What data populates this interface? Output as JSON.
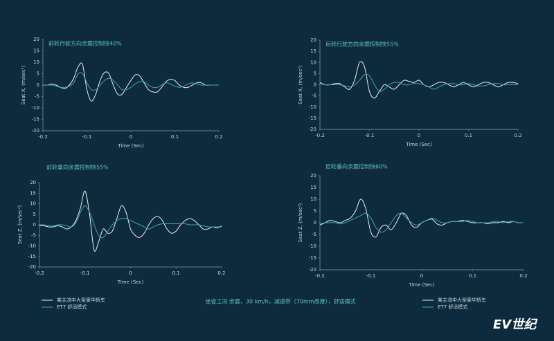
{
  "chart_data": [
    {
      "type": "line",
      "title": "前轮行驶方向余震控制快40%",
      "xlabel": "Time (Sec)",
      "ylabel": "Seat X, (m/sec²)",
      "xlim": [
        -0.2,
        0.2
      ],
      "ylim": [
        -20,
        20
      ],
      "xticks": [
        -0.2,
        -0.1,
        0,
        0.1,
        0.2
      ],
      "yticks": [
        -20,
        -15,
        -10,
        -5,
        0,
        5,
        10,
        15,
        20
      ],
      "x": [
        -0.2,
        -0.19,
        -0.18,
        -0.17,
        -0.16,
        -0.15,
        -0.14,
        -0.13,
        -0.12,
        -0.11,
        -0.1,
        -0.09,
        -0.08,
        -0.07,
        -0.06,
        -0.05,
        -0.04,
        -0.03,
        -0.02,
        -0.01,
        0,
        0.01,
        0.02,
        0.03,
        0.04,
        0.05,
        0.06,
        0.07,
        0.08,
        0.09,
        0.1,
        0.11,
        0.12,
        0.13,
        0.14,
        0.15,
        0.16,
        0.17,
        0.18,
        0.19,
        0.2
      ],
      "series": [
        {
          "name": "某主流中大型豪华轿车",
          "color": "#e8eef0",
          "values": [
            0,
            0,
            0.5,
            0,
            -1,
            -1.5,
            0,
            3,
            8,
            9,
            -2,
            -7,
            -4,
            2,
            5.5,
            5,
            0,
            -4,
            -4,
            -1,
            2,
            4.5,
            4,
            1,
            -2,
            -3,
            -3,
            -1,
            1.5,
            2.5,
            2,
            0,
            -1,
            -1,
            0,
            1,
            1,
            0,
            0,
            0,
            0
          ]
        },
        {
          "name": "ET7 舒适模式",
          "color": "#3fa7a8",
          "values": [
            0,
            0,
            0,
            -0.5,
            -1,
            -1,
            -0.5,
            1,
            5,
            5,
            1,
            -2,
            -2,
            0,
            2,
            3,
            2,
            0,
            -2,
            -2,
            -1,
            0.5,
            1.5,
            1.5,
            0,
            -1,
            -1,
            0,
            1,
            0.5,
            -0.5,
            -1,
            -0.5,
            0.5,
            1,
            0.5,
            0,
            0,
            0,
            0,
            0
          ]
        }
      ]
    },
    {
      "type": "line",
      "title": "后轮行驶方向余震控制快55%",
      "xlabel": "Time (Sec)",
      "ylabel": "Seat X, (m/sec²)",
      "xlim": [
        -0.2,
        0.2
      ],
      "ylim": [
        -20,
        20
      ],
      "xticks": [
        -0.2,
        -0.1,
        0,
        0.1,
        0.2
      ],
      "yticks": [
        -20,
        -15,
        -10,
        -5,
        0,
        5,
        10,
        15,
        20
      ],
      "x": [
        -0.2,
        -0.19,
        -0.18,
        -0.17,
        -0.16,
        -0.15,
        -0.14,
        -0.13,
        -0.12,
        -0.11,
        -0.1,
        -0.09,
        -0.08,
        -0.07,
        -0.06,
        -0.05,
        -0.04,
        -0.03,
        -0.02,
        -0.01,
        0,
        0.01,
        0.02,
        0.03,
        0.04,
        0.05,
        0.06,
        0.07,
        0.08,
        0.09,
        0.1,
        0.11,
        0.12,
        0.13,
        0.14,
        0.15,
        0.16,
        0.17,
        0.18,
        0.19,
        0.2
      ],
      "series": [
        {
          "name": "某主流中大型豪华轿车",
          "color": "#e8eef0",
          "values": [
            1,
            0,
            0,
            0.5,
            0.5,
            -1,
            -2,
            2,
            10,
            8,
            -3,
            -6,
            -3,
            0,
            -1,
            -2,
            0,
            2,
            1.5,
            1,
            2,
            0,
            -1,
            0,
            1,
            1,
            0,
            -1,
            0,
            1,
            0,
            -1,
            0,
            1,
            1,
            0,
            -1,
            0,
            1,
            1,
            0.5
          ]
        },
        {
          "name": "ET7 舒适模式",
          "color": "#3fa7a8",
          "values": [
            0.5,
            0,
            0,
            0,
            0,
            -0.5,
            -1,
            0,
            2,
            4.5,
            4,
            0,
            -3,
            -2,
            0,
            1,
            1,
            0,
            0,
            0.5,
            0.5,
            0,
            -1,
            -2,
            -1,
            0,
            0.5,
            0.5,
            0,
            0,
            0.5,
            0,
            -0.5,
            -0.5,
            0,
            0.5,
            0.5,
            0,
            0,
            0,
            0
          ]
        }
      ]
    },
    {
      "type": "line",
      "title": "前轮垂向余震控制快55%",
      "xlabel": "Time (Sec)",
      "ylabel": "Seat Z, (m/sec²)",
      "xlim": [
        -0.2,
        0.2
      ],
      "ylim": [
        -20,
        20
      ],
      "xticks": [
        -0.2,
        -0.1,
        0,
        0.1,
        0.2
      ],
      "yticks": [
        -20,
        -15,
        -10,
        -5,
        0,
        5,
        10,
        15,
        20
      ],
      "x": [
        -0.2,
        -0.19,
        -0.18,
        -0.17,
        -0.16,
        -0.15,
        -0.14,
        -0.13,
        -0.12,
        -0.11,
        -0.1,
        -0.09,
        -0.08,
        -0.07,
        -0.06,
        -0.05,
        -0.04,
        -0.03,
        -0.02,
        -0.01,
        0,
        0.01,
        0.02,
        0.03,
        0.04,
        0.05,
        0.06,
        0.07,
        0.08,
        0.09,
        0.1,
        0.11,
        0.12,
        0.13,
        0.14,
        0.15,
        0.16,
        0.17,
        0.18,
        0.19,
        0.2
      ],
      "series": [
        {
          "name": "某主流中大型豪华轿车",
          "color": "#e8eef0",
          "values": [
            -0.5,
            -0.5,
            -1,
            -1,
            -0.5,
            -1,
            -2,
            -1,
            2,
            8,
            16,
            5,
            -12,
            -8,
            -2,
            -4,
            -3,
            3,
            9,
            6,
            -2,
            -5,
            -6,
            -4,
            0,
            3,
            4,
            2,
            -2,
            -4,
            -3,
            0,
            2,
            3,
            2,
            0,
            -2,
            -2,
            -1,
            -1.5,
            -0.5
          ]
        },
        {
          "name": "ET7 舒适模式",
          "color": "#3fa7a8",
          "values": [
            0,
            0,
            -0.5,
            -0.5,
            0,
            0,
            -0.5,
            -1,
            1,
            6,
            9,
            6,
            0,
            -5,
            -6,
            -3,
            0,
            2,
            3,
            3,
            2,
            1,
            0,
            -1,
            -2,
            -1,
            0,
            0.5,
            0.5,
            0.5,
            0.5,
            0.5,
            0.5,
            0,
            0,
            0,
            -0.5,
            -1,
            -1,
            -1,
            -1
          ]
        }
      ]
    },
    {
      "type": "line",
      "title": "后轮垂向余震控制快60%",
      "xlabel": "Time (Sec)",
      "ylabel": "Seat Z, (m/sec²)",
      "xlim": [
        -0.2,
        0.2
      ],
      "ylim": [
        -20,
        20
      ],
      "xticks": [
        -0.2,
        -0.1,
        0,
        0.1,
        0.2
      ],
      "yticks": [
        -20,
        -15,
        -10,
        -5,
        0,
        5,
        10,
        15,
        20
      ],
      "x": [
        -0.2,
        -0.19,
        -0.18,
        -0.17,
        -0.16,
        -0.15,
        -0.14,
        -0.13,
        -0.12,
        -0.11,
        -0.1,
        -0.09,
        -0.08,
        -0.07,
        -0.06,
        -0.05,
        -0.04,
        -0.03,
        -0.02,
        -0.01,
        0,
        0.01,
        0.02,
        0.03,
        0.04,
        0.05,
        0.06,
        0.07,
        0.08,
        0.09,
        0.1,
        0.11,
        0.12,
        0.13,
        0.14,
        0.15,
        0.16,
        0.17,
        0.18,
        0.19,
        0.2
      ],
      "series": [
        {
          "name": "某主流中大型豪华轿车",
          "color": "#e8eef0",
          "values": [
            -1,
            0,
            1,
            0.5,
            0,
            1,
            2,
            5,
            10,
            6,
            -4,
            -6,
            -2,
            -1,
            -3,
            0,
            4,
            3,
            -1,
            -2,
            0,
            1,
            1.5,
            -0.5,
            -1,
            0,
            0.5,
            0.5,
            1,
            0.5,
            0,
            0,
            0,
            -0.5,
            0,
            0,
            0.5,
            0,
            0.5,
            0,
            0
          ]
        },
        {
          "name": "ET7 舒适模式",
          "color": "#3fa7a8",
          "values": [
            -0.5,
            0,
            0,
            0,
            -0.5,
            0,
            1,
            2,
            3,
            4,
            2,
            -2,
            -4,
            -3,
            0,
            3,
            4,
            2,
            0,
            -1,
            0,
            1,
            2,
            1,
            0,
            0,
            0.5,
            0.5,
            0.5,
            1,
            0.5,
            0,
            0,
            0,
            0.5,
            0.5,
            0,
            0.5,
            0.5,
            0,
            0
          ]
        }
      ]
    }
  ],
  "caption": "坐姿工况  余震，30 km/h，减速带（70mm高度），舒适模式",
  "watermark": "EV世纪"
}
